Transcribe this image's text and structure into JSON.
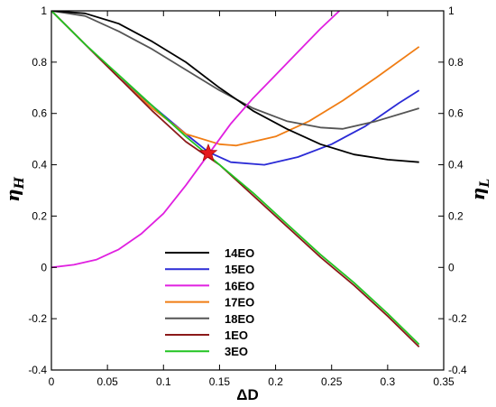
{
  "chart_data": {
    "type": "line",
    "xlabel": "ΔD",
    "ylabel_left": "η_H",
    "ylabel_right": "η_L",
    "xlim": [
      0,
      0.35
    ],
    "ylim": [
      -0.4,
      1
    ],
    "xticks": [
      "0",
      "0.05",
      "0.1",
      "0.15",
      "0.2",
      "0.25",
      "0.3",
      "0.35"
    ],
    "yticks": [
      "-0.4",
      "-0.2",
      "0",
      "0.2",
      "0.4",
      "0.6",
      "0.8",
      "1"
    ],
    "legend_position": "bottom-center",
    "marker": {
      "shape": "star",
      "color": "#e41a1c",
      "x": 0.14,
      "y": 0.445
    },
    "series": [
      {
        "name": "14EO",
        "color": "#000000",
        "x": [
          0,
          0.03,
          0.06,
          0.09,
          0.12,
          0.15,
          0.18,
          0.21,
          0.24,
          0.27,
          0.3,
          0.328
        ],
        "y": [
          1.0,
          0.99,
          0.95,
          0.88,
          0.8,
          0.7,
          0.61,
          0.54,
          0.48,
          0.44,
          0.42,
          0.41
        ]
      },
      {
        "name": "15EO",
        "color": "#2b2bd6",
        "x": [
          0,
          0.03,
          0.06,
          0.09,
          0.12,
          0.14,
          0.16,
          0.19,
          0.22,
          0.25,
          0.28,
          0.31,
          0.328
        ],
        "y": [
          1.0,
          0.87,
          0.74,
          0.63,
          0.52,
          0.45,
          0.41,
          0.4,
          0.43,
          0.48,
          0.55,
          0.64,
          0.69
        ]
      },
      {
        "name": "16EO",
        "color": "#e020e0",
        "x": [
          0,
          0.02,
          0.04,
          0.06,
          0.08,
          0.1,
          0.12,
          0.14,
          0.16,
          0.18,
          0.2,
          0.22,
          0.24,
          0.257
        ],
        "y": [
          0.0,
          0.01,
          0.03,
          0.07,
          0.13,
          0.21,
          0.32,
          0.44,
          0.56,
          0.66,
          0.75,
          0.84,
          0.93,
          1.0
        ]
      },
      {
        "name": "17EO",
        "color": "#f07d14",
        "x": [
          0,
          0.03,
          0.06,
          0.09,
          0.12,
          0.15,
          0.165,
          0.2,
          0.23,
          0.26,
          0.29,
          0.328
        ],
        "y": [
          1.0,
          0.87,
          0.74,
          0.62,
          0.52,
          0.48,
          0.475,
          0.51,
          0.57,
          0.65,
          0.74,
          0.86
        ]
      },
      {
        "name": "18EO",
        "color": "#555555",
        "x": [
          0,
          0.03,
          0.06,
          0.09,
          0.12,
          0.15,
          0.18,
          0.21,
          0.24,
          0.26,
          0.29,
          0.328
        ],
        "y": [
          1.0,
          0.98,
          0.92,
          0.85,
          0.77,
          0.69,
          0.62,
          0.57,
          0.545,
          0.54,
          0.57,
          0.62
        ]
      },
      {
        "name": "1EO",
        "color": "#8b1a1a",
        "x": [
          0,
          0.03,
          0.06,
          0.09,
          0.12,
          0.15,
          0.18,
          0.21,
          0.24,
          0.27,
          0.3,
          0.328
        ],
        "y": [
          1.0,
          0.87,
          0.74,
          0.61,
          0.49,
          0.4,
          0.28,
          0.16,
          0.04,
          -0.07,
          -0.19,
          -0.31
        ]
      },
      {
        "name": "3EO",
        "color": "#22c422",
        "x": [
          0,
          0.03,
          0.06,
          0.09,
          0.12,
          0.15,
          0.18,
          0.21,
          0.24,
          0.27,
          0.3,
          0.328
        ],
        "y": [
          1.0,
          0.87,
          0.75,
          0.63,
          0.51,
          0.4,
          0.29,
          0.17,
          0.05,
          -0.06,
          -0.18,
          -0.3
        ]
      }
    ]
  }
}
